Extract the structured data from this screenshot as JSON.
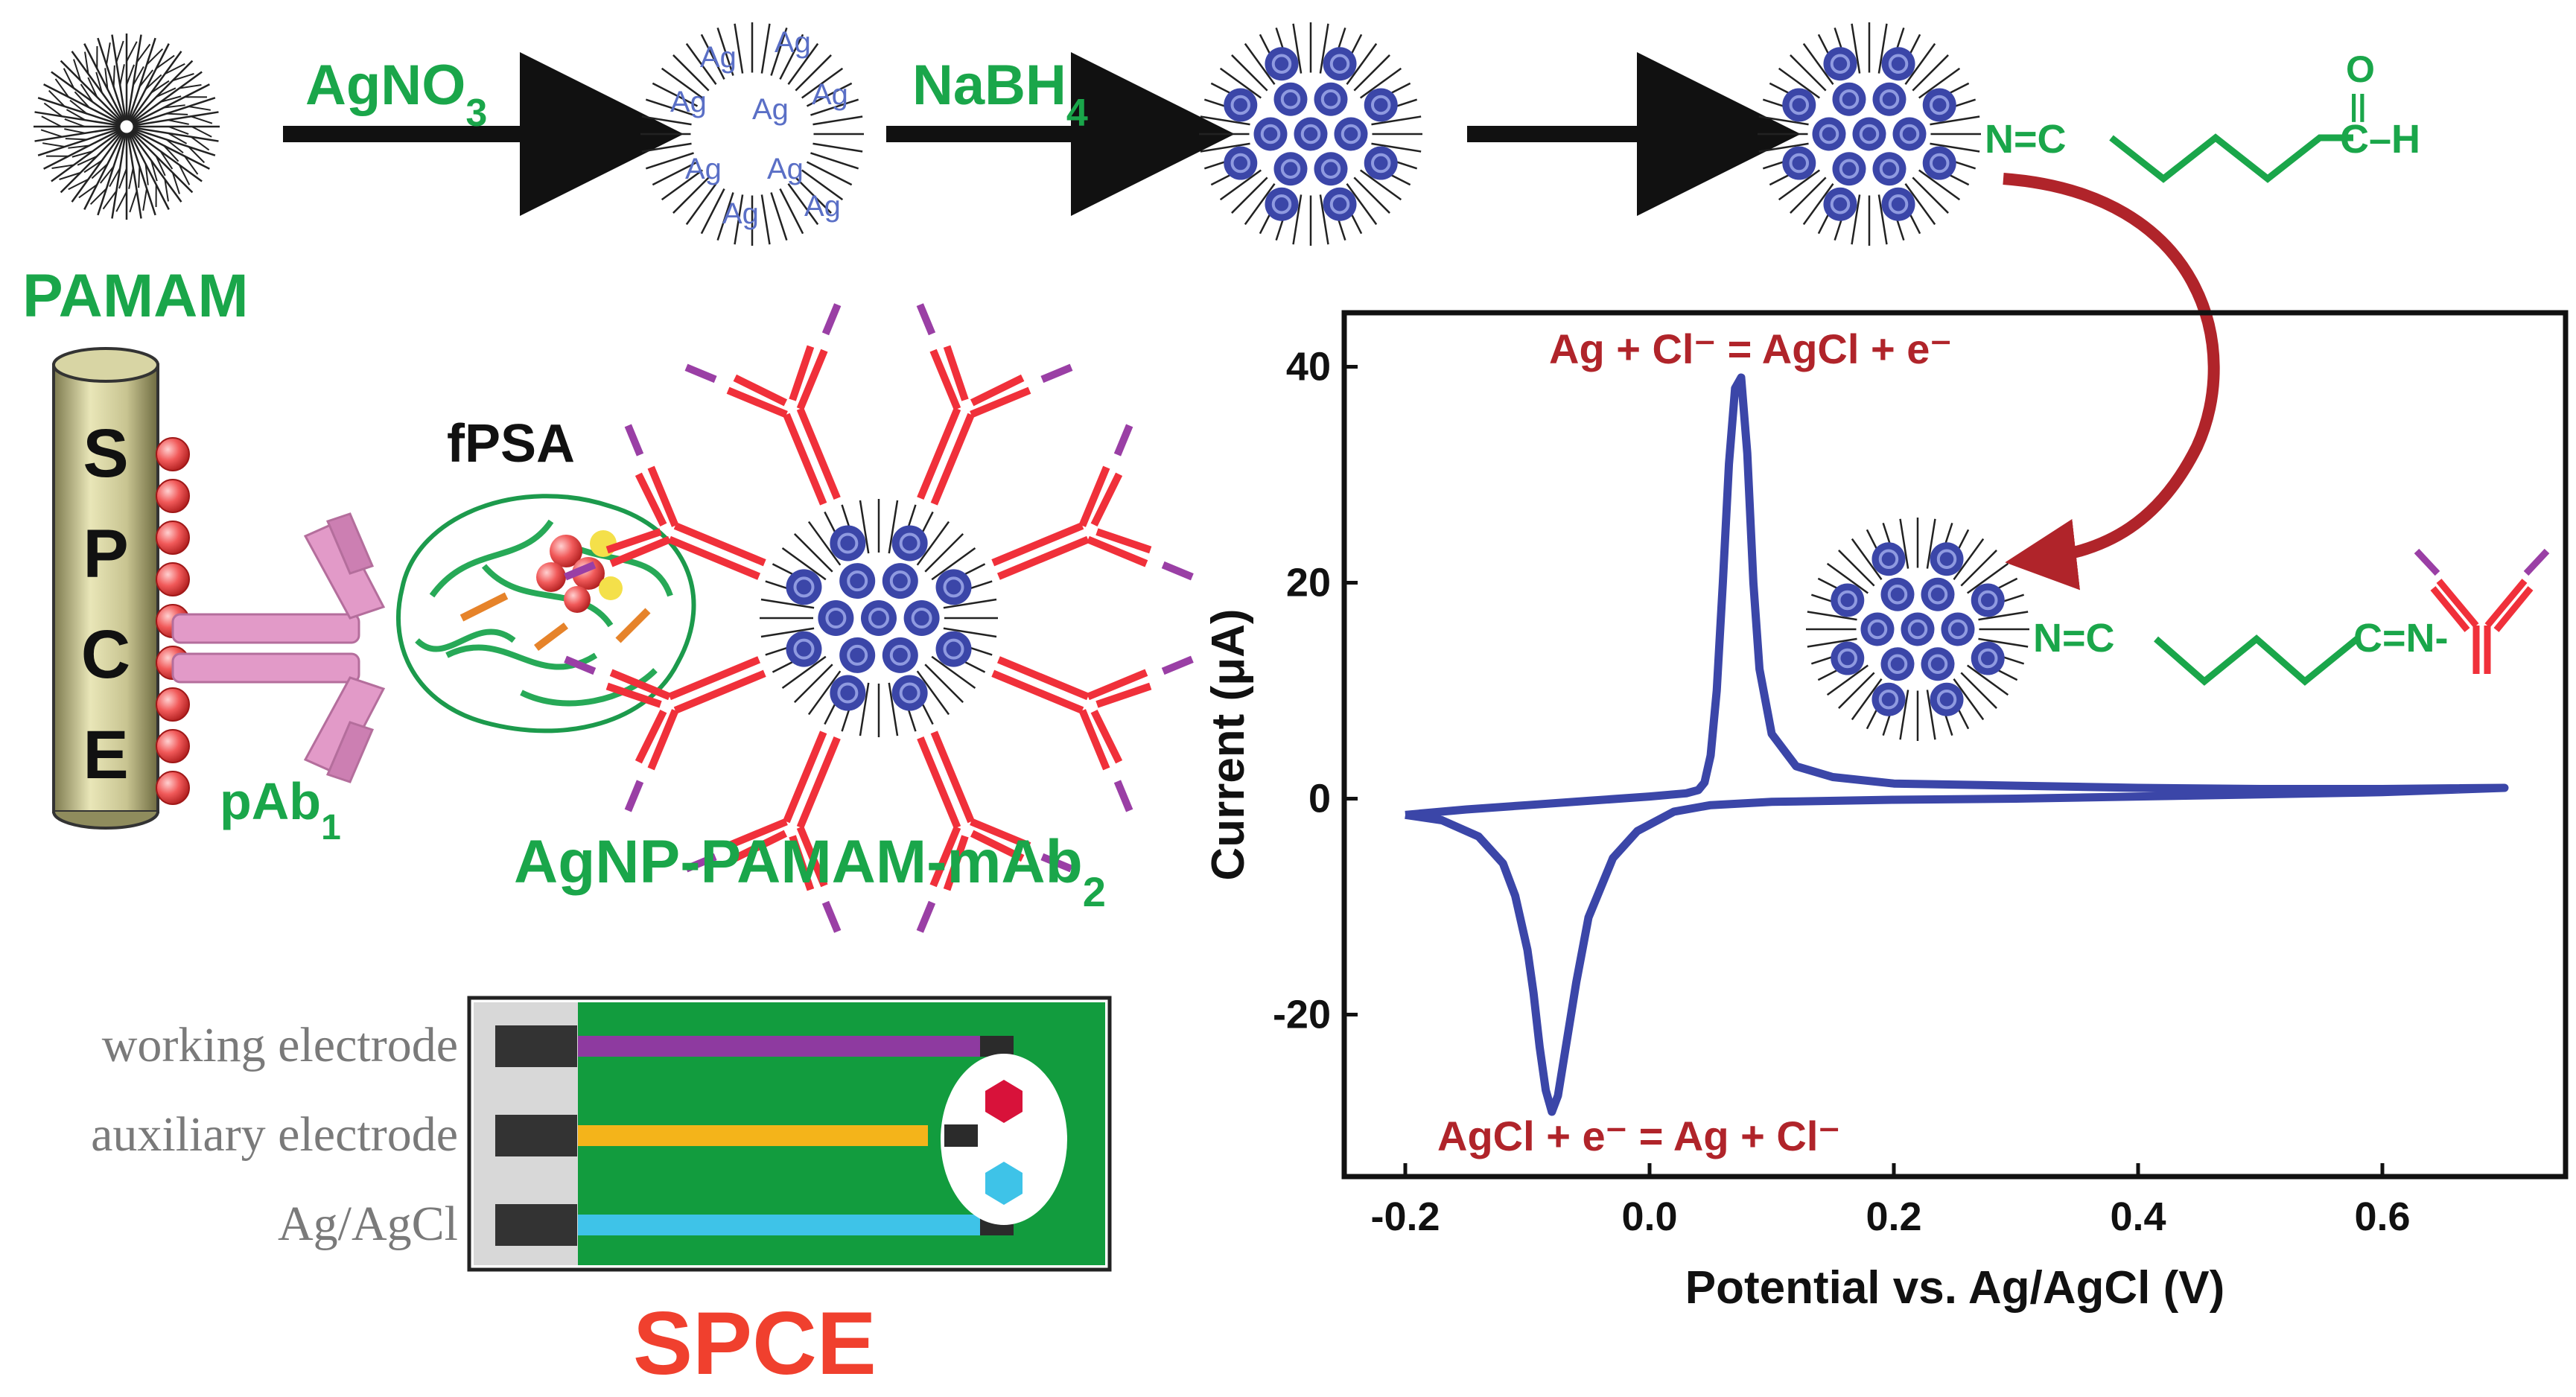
{
  "colors": {
    "green": "#1aa64a",
    "darkred": "#b0242a",
    "blue": "#3b46a8",
    "antibody_red": "#f0303a",
    "antibody_purple": "#9a3fa5",
    "pink": "#e29ac8",
    "spce_green": "#129c3e",
    "spce_red": "#f0402e"
  },
  "synthesis": {
    "pamam_label": "PAMAM",
    "step1_reagent": "AgNO",
    "step1_sub": "3",
    "step2_reagent": "NaBH",
    "step2_sub": "4",
    "ag_ion_label": "Ag",
    "linker_imine": "N=C",
    "aldehyde_o": "O",
    "aldehyde_ch": "C–H",
    "aldehyde_double": "||"
  },
  "assay": {
    "electrode_letters": [
      "S",
      "P",
      "C",
      "E"
    ],
    "antigen_label": "fPSA",
    "capture_ab_label": "pAb",
    "capture_ab_sub": "1",
    "conjugate_label": "AgNP-PAMAM-mAb",
    "conjugate_sub": "2"
  },
  "spce_chip": {
    "title": "SPCE",
    "electrodes": [
      {
        "label": "working electrode",
        "color": "#8e3aa0"
      },
      {
        "label": "auxiliary electrode",
        "color": "#f4b41a"
      },
      {
        "label": "Ag/AgCl",
        "color": "#3ec3e8"
      }
    ]
  },
  "conjugate_structure": {
    "imine_left": "N=C",
    "imine_right": "C=N-"
  },
  "chart_data": {
    "type": "line",
    "xlabel": "Potential vs. Ag/AgCl (V)",
    "ylabel": "Current (μA)",
    "xlim": [
      -0.25,
      0.75
    ],
    "ylim": [
      -35,
      45
    ],
    "xticks": [
      "-0.2",
      "0.0",
      "0.2",
      "0.4",
      "0.6"
    ],
    "yticks": [
      "-20",
      "0",
      "20",
      "40"
    ],
    "xtick_values": [
      -0.2,
      0.0,
      0.2,
      0.4,
      0.6
    ],
    "ytick_values": [
      -20,
      0,
      20,
      40
    ],
    "annotations": {
      "oxidation": "Ag + Cl⁻ = AgCl + e⁻",
      "reduction": "AgCl + e⁻ = Ag + Cl⁻"
    },
    "series": [
      {
        "x": [
          -0.2,
          -0.17,
          -0.14,
          -0.12,
          -0.11,
          -0.1,
          -0.095,
          -0.09,
          -0.085,
          -0.08,
          -0.075,
          -0.07,
          -0.06,
          -0.05,
          -0.03,
          -0.01,
          0.02,
          0.05,
          0.1,
          0.2,
          0.3,
          0.4,
          0.5,
          0.6,
          0.7,
          0.7,
          0.6,
          0.5,
          0.4,
          0.3,
          0.2,
          0.15,
          0.12,
          0.1,
          0.09,
          0.085,
          0.08,
          0.075,
          0.07,
          0.065,
          0.06,
          0.055,
          0.05,
          0.045,
          0.04,
          0.03,
          0.0,
          -0.05,
          -0.1,
          -0.15,
          -0.2
        ],
        "y": [
          -1.5,
          -2.0,
          -3.5,
          -6.0,
          -9.0,
          -14.0,
          -18.0,
          -23.0,
          -27.0,
          -29.0,
          -27.5,
          -24.0,
          -17.0,
          -11.0,
          -5.5,
          -3.0,
          -1.2,
          -0.6,
          -0.3,
          -0.1,
          0.0,
          0.2,
          0.4,
          0.6,
          1.0,
          1.0,
          0.9,
          0.9,
          1.0,
          1.2,
          1.4,
          2.0,
          3.0,
          6.0,
          12.0,
          20.0,
          32.0,
          39.0,
          38.0,
          31.0,
          20.0,
          10.0,
          4.0,
          1.5,
          0.8,
          0.5,
          0.2,
          -0.2,
          -0.6,
          -1.0,
          -1.5
        ]
      }
    ]
  }
}
